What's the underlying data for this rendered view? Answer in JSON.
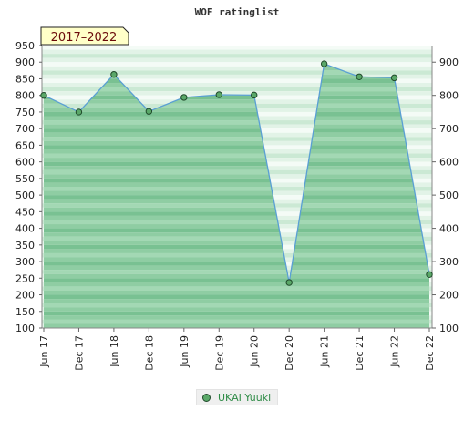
{
  "title": "WOF ratinglist",
  "period_badge": "2017–2022",
  "chart_data": {
    "type": "area",
    "title": "WOF ratinglist",
    "categories": [
      "Jun 17",
      "Dec 17",
      "Jun 18",
      "Dec 18",
      "Jun 19",
      "Dec 19",
      "Jun 20",
      "Dec 20",
      "Jun 21",
      "Dec 21",
      "Jun 22",
      "Dec 22"
    ],
    "series": [
      {
        "name": "UKAI Yuuki",
        "values": [
          800,
          750,
          863,
          752,
          794,
          802,
          801,
          237,
          895,
          856,
          853,
          261
        ]
      }
    ],
    "ylim": [
      100,
      950
    ],
    "y_ticks_left": [
      100,
      150,
      200,
      250,
      300,
      350,
      400,
      450,
      500,
      550,
      600,
      650,
      700,
      750,
      800,
      850,
      900,
      950
    ],
    "y_ticks_right": [
      100,
      200,
      300,
      400,
      500,
      600,
      700,
      800,
      900
    ],
    "grid": true,
    "legend_position": "bottom-center",
    "colors": {
      "line": "#5a9fd4",
      "fill": "#7cc494",
      "marker": "#5aa868",
      "marker_edge": "#1f4a2a"
    }
  },
  "legend": {
    "label": "UKAI Yuuki"
  }
}
